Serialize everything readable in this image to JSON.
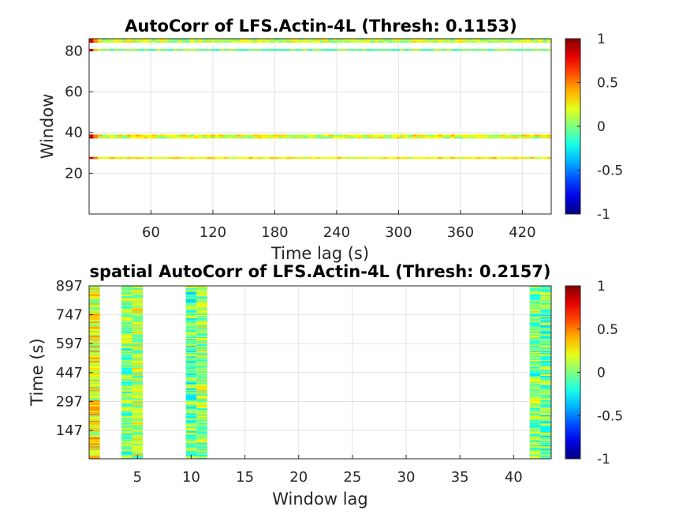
{
  "chart_data": [
    {
      "type": "heatmap",
      "title": "AutoCorr of LFS.Actin-4L (Thresh: 0.1153)",
      "xlabel": "Time lag (s)",
      "ylabel": "Window",
      "xlim": [
        0,
        448
      ],
      "ylim": [
        0,
        86
      ],
      "xticks": [
        60,
        120,
        180,
        240,
        300,
        360,
        420
      ],
      "xtick_labels": [
        "60",
        "120",
        "180",
        "240",
        "300",
        "360",
        "420"
      ],
      "yticks": [
        20,
        40,
        60,
        80
      ],
      "ytick_labels": [
        "20",
        "40",
        "60",
        "80"
      ],
      "grid": true,
      "colorbar": {
        "min": -1,
        "max": 1,
        "ticks": [
          1,
          0.5,
          0,
          -0.5,
          -1
        ],
        "tick_labels": [
          "1",
          "0.5",
          "0",
          "-0.5",
          "-1"
        ],
        "colormap": "jet"
      },
      "rows": [
        {
          "window": 28,
          "start_value": 0.85,
          "mean_value": 0.25,
          "spread": 0.15
        },
        {
          "window": 38,
          "start_value": 0.9,
          "mean_value": 0.15,
          "spread": 0.2
        },
        {
          "window": 39,
          "start_value": 0.85,
          "mean_value": 0.2,
          "spread": 0.2
        },
        {
          "window": 81,
          "start_value": 0.8,
          "mean_value": 0.0,
          "spread": 0.15
        },
        {
          "window": 85,
          "start_value": 0.9,
          "mean_value": 0.15,
          "spread": 0.2
        },
        {
          "window": 86,
          "start_value": 0.85,
          "mean_value": 0.1,
          "spread": 0.2
        }
      ]
    },
    {
      "type": "heatmap",
      "title": "spatial AutoCorr of LFS.Actin-4L (Thresh: 0.2157)",
      "xlabel": "Window lag",
      "ylabel": "Time (s)",
      "xlim": [
        0.5,
        43.5
      ],
      "ylim": [
        0,
        897
      ],
      "xticks": [
        5,
        10,
        15,
        20,
        25,
        30,
        35,
        40
      ],
      "xtick_labels": [
        "5",
        "10",
        "15",
        "20",
        "25",
        "30",
        "35",
        "40"
      ],
      "yticks": [
        147,
        297,
        447,
        597,
        747,
        897
      ],
      "ytick_labels": [
        "147",
        "297",
        "447",
        "597",
        "747",
        "897"
      ],
      "grid": true,
      "colorbar": {
        "min": -1,
        "max": 1,
        "ticks": [
          1,
          0.5,
          0,
          -0.5,
          -1
        ],
        "tick_labels": [
          "1",
          "0.5",
          "0",
          "-0.5",
          "-1"
        ],
        "colormap": "jet"
      },
      "columns": [
        {
          "lag": 1,
          "mean_value": 0.25,
          "spread": 0.3
        },
        {
          "lag": 4,
          "mean_value": 0.0,
          "spread": 0.3
        },
        {
          "lag": 5,
          "mean_value": 0.1,
          "spread": 0.3
        },
        {
          "lag": 10,
          "mean_value": -0.05,
          "spread": 0.3
        },
        {
          "lag": 11,
          "mean_value": 0.05,
          "spread": 0.3
        },
        {
          "lag": 42,
          "mean_value": 0.0,
          "spread": 0.3
        },
        {
          "lag": 43,
          "mean_value": -0.05,
          "spread": 0.3
        }
      ]
    }
  ]
}
